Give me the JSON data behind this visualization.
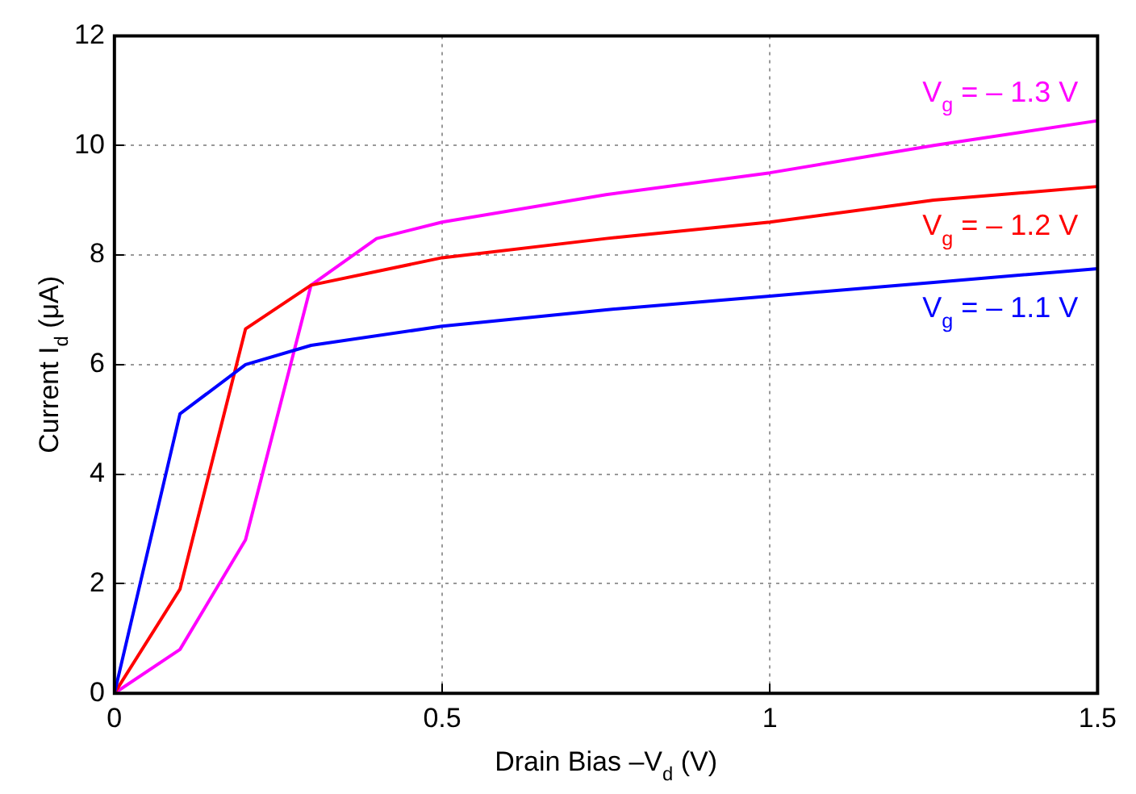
{
  "chart_data": {
    "type": "line",
    "xlabel": "Drain Bias –V$_{d}$ (V)",
    "ylabel": "Current I$_{d}$ (μA)",
    "xlim": [
      0,
      1.5
    ],
    "xticks": [
      0,
      0.5,
      1,
      1.5
    ],
    "ylim": [
      0,
      12
    ],
    "yticks": [
      0,
      2,
      4,
      6,
      8,
      10,
      12
    ],
    "grid": true,
    "legend": false,
    "marker": "none",
    "line_style": "solid",
    "series": [
      {
        "name": "V$_{g}$ = – 1.1 V",
        "color": "#0000ff",
        "x": [
          0,
          0.1,
          0.2,
          0.3,
          0.5,
          0.75,
          1.0,
          1.25,
          1.5
        ],
        "values": [
          0,
          5.1,
          6.0,
          6.35,
          6.7,
          7.0,
          7.25,
          7.5,
          7.75
        ]
      },
      {
        "name": "V$_{g}$ = – 1.2 V",
        "color": "#ff0000",
        "x": [
          0,
          0.1,
          0.2,
          0.3,
          0.5,
          0.75,
          1.0,
          1.25,
          1.5
        ],
        "values": [
          0,
          1.9,
          6.65,
          7.45,
          7.95,
          8.3,
          8.6,
          9.0,
          9.25
        ]
      },
      {
        "name": "V$_{g}$ = – 1.3 V",
        "color": "#ff00ff",
        "x": [
          0,
          0.1,
          0.2,
          0.3,
          0.4,
          0.5,
          0.75,
          1.0,
          1.25,
          1.5
        ],
        "values": [
          0,
          0.8,
          2.8,
          7.45,
          8.3,
          8.6,
          9.1,
          9.5,
          10.0,
          10.45
        ]
      }
    ]
  }
}
